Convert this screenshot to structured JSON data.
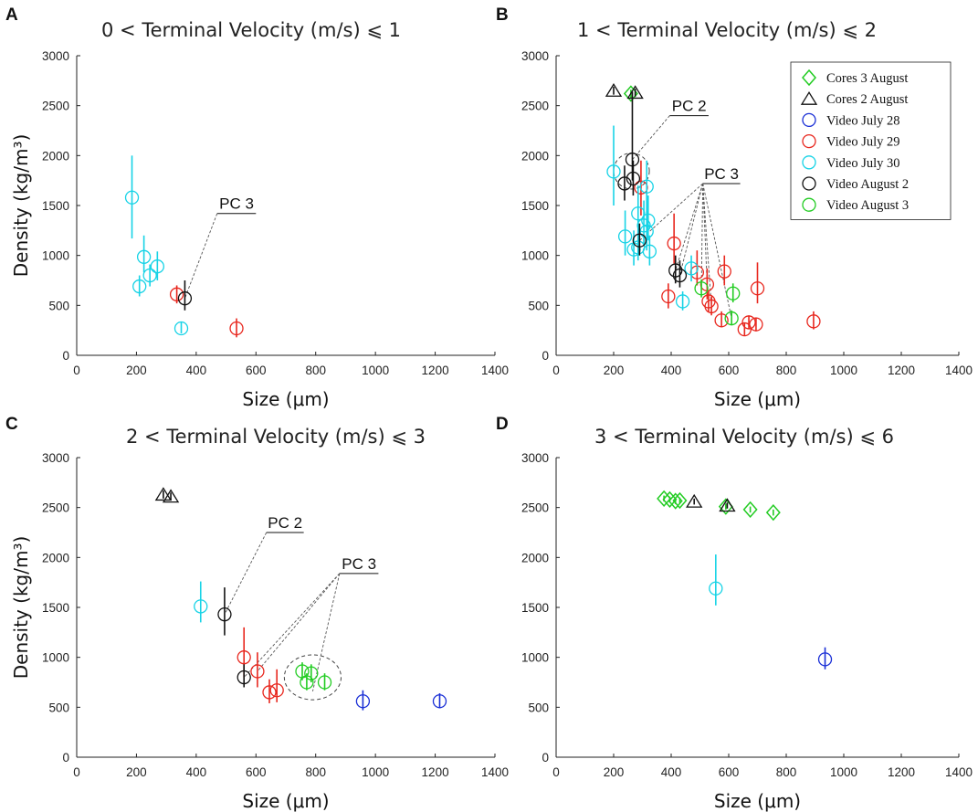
{
  "figure": {
    "panel_letters": [
      "A",
      "B",
      "C",
      "D"
    ]
  },
  "legend": {
    "entries": [
      {
        "label": "Cores 3 August",
        "marker": "diamond",
        "color": "#22cc22"
      },
      {
        "label": "Cores 2 August",
        "marker": "triangle",
        "color": "#111111"
      },
      {
        "label": "Video July 28",
        "marker": "circle",
        "color": "#1a2fd6"
      },
      {
        "label": "Video July 29",
        "marker": "circle",
        "color": "#e8271e"
      },
      {
        "label": "Video July 30",
        "marker": "circle",
        "color": "#17d3e6"
      },
      {
        "label": "Video August 2",
        "marker": "circle",
        "color": "#111111"
      },
      {
        "label": "Video August 3",
        "marker": "circle",
        "color": "#22cc22"
      }
    ]
  },
  "chart_data": [
    {
      "panel": "A",
      "type": "scatter",
      "title": "0 < Terminal Velocity (m/s) ⩽ 1",
      "xlabel": "Size (μm)",
      "ylabel": "Density (kg/m³)",
      "xlim": [
        0,
        1400
      ],
      "ylim": [
        0,
        3000
      ],
      "xticks": [
        0,
        200,
        400,
        600,
        800,
        1000,
        1200,
        1400
      ],
      "yticks": [
        0,
        500,
        1000,
        1500,
        2000,
        2500,
        3000
      ],
      "series": [
        {
          "name": "Video July 29",
          "points": [
            {
              "x": 335,
              "y": 610,
              "lo": 520,
              "hi": 700
            },
            {
              "x": 535,
              "y": 270,
              "lo": 180,
              "hi": 370
            }
          ]
        },
        {
          "name": "Video July 30",
          "points": [
            {
              "x": 185,
              "y": 1580,
              "lo": 1170,
              "hi": 2000
            },
            {
              "x": 225,
              "y": 985,
              "lo": 830,
              "hi": 1200
            },
            {
              "x": 270,
              "y": 890,
              "lo": 750,
              "hi": 1040
            },
            {
              "x": 210,
              "y": 690,
              "lo": 590,
              "hi": 800
            },
            {
              "x": 245,
              "y": 800,
              "lo": 690,
              "hi": 910
            },
            {
              "x": 350,
              "y": 270,
              "lo": 220,
              "hi": 330
            }
          ]
        },
        {
          "name": "Video August 2",
          "points": [
            {
              "x": 362,
              "y": 570,
              "lo": 450,
              "hi": 750
            }
          ]
        }
      ],
      "annotations": [
        {
          "text": "PC 3",
          "x": 470,
          "y": 1420,
          "bar_x2": 600,
          "targets": [
            [
              362,
              570
            ]
          ]
        }
      ],
      "ellipses": []
    },
    {
      "panel": "B",
      "type": "scatter",
      "title": "1 < Terminal Velocity (m/s) ⩽ 2",
      "xlabel": "Size (μm)",
      "ylabel": "",
      "xlim": [
        0,
        1400
      ],
      "ylim": [
        0,
        3000
      ],
      "xticks": [
        0,
        200,
        400,
        600,
        800,
        1000,
        1200,
        1400
      ],
      "yticks": [
        0,
        500,
        1000,
        1500,
        2000,
        2500,
        3000
      ],
      "series": [
        {
          "name": "Cores 3 August",
          "points": [
            {
              "x": 260,
              "y": 2620,
              "lo": 2580,
              "hi": 2660
            }
          ]
        },
        {
          "name": "Cores 2 August",
          "points": [
            {
              "x": 200,
              "y": 2650,
              "lo": 2610,
              "hi": 2690
            },
            {
              "x": 275,
              "y": 2630,
              "lo": 2590,
              "hi": 2670
            }
          ]
        },
        {
          "name": "Video July 29",
          "points": [
            {
              "x": 295,
              "y": 1680,
              "lo": 1400,
              "hi": 1950
            },
            {
              "x": 410,
              "y": 1120,
              "lo": 920,
              "hi": 1420
            },
            {
              "x": 390,
              "y": 590,
              "lo": 470,
              "hi": 720
            },
            {
              "x": 490,
              "y": 830,
              "lo": 700,
              "hi": 1050
            },
            {
              "x": 525,
              "y": 710,
              "lo": 560,
              "hi": 870
            },
            {
              "x": 530,
              "y": 540,
              "lo": 430,
              "hi": 650
            },
            {
              "x": 540,
              "y": 490,
              "lo": 400,
              "hi": 590
            },
            {
              "x": 575,
              "y": 350,
              "lo": 280,
              "hi": 440
            },
            {
              "x": 585,
              "y": 840,
              "lo": 700,
              "hi": 1000
            },
            {
              "x": 655,
              "y": 260,
              "lo": 200,
              "hi": 330
            },
            {
              "x": 670,
              "y": 330,
              "lo": 260,
              "hi": 400
            },
            {
              "x": 695,
              "y": 310,
              "lo": 240,
              "hi": 380
            },
            {
              "x": 700,
              "y": 670,
              "lo": 520,
              "hi": 930
            },
            {
              "x": 895,
              "y": 340,
              "lo": 260,
              "hi": 440
            }
          ]
        },
        {
          "name": "Video July 30",
          "points": [
            {
              "x": 200,
              "y": 1840,
              "lo": 1500,
              "hi": 2300
            },
            {
              "x": 240,
              "y": 1190,
              "lo": 1000,
              "hi": 1450
            },
            {
              "x": 270,
              "y": 1060,
              "lo": 900,
              "hi": 1250
            },
            {
              "x": 285,
              "y": 1420,
              "lo": 1200,
              "hi": 1700
            },
            {
              "x": 305,
              "y": 1300,
              "lo": 1100,
              "hi": 1550
            },
            {
              "x": 315,
              "y": 1690,
              "lo": 1450,
              "hi": 1950
            },
            {
              "x": 320,
              "y": 1350,
              "lo": 1150,
              "hi": 1600
            },
            {
              "x": 315,
              "y": 1240,
              "lo": 1050,
              "hi": 1450
            },
            {
              "x": 325,
              "y": 1040,
              "lo": 900,
              "hi": 1200
            },
            {
              "x": 285,
              "y": 1080,
              "lo": 950,
              "hi": 1250
            },
            {
              "x": 440,
              "y": 540,
              "lo": 450,
              "hi": 640
            },
            {
              "x": 470,
              "y": 870,
              "lo": 740,
              "hi": 1000
            }
          ]
        },
        {
          "name": "Video August 2",
          "points": [
            {
              "x": 265,
              "y": 1960,
              "lo": 1750,
              "hi": 2640
            },
            {
              "x": 268,
              "y": 1770,
              "lo": 1600,
              "hi": 1950
            },
            {
              "x": 238,
              "y": 1720,
              "lo": 1550,
              "hi": 1900
            },
            {
              "x": 290,
              "y": 1150,
              "lo": 1000,
              "hi": 1320
            },
            {
              "x": 415,
              "y": 850,
              "lo": 720,
              "hi": 1000
            },
            {
              "x": 430,
              "y": 800,
              "lo": 680,
              "hi": 950
            }
          ]
        },
        {
          "name": "Video August 3",
          "points": [
            {
              "x": 505,
              "y": 670,
              "lo": 580,
              "hi": 760
            },
            {
              "x": 610,
              "y": 370,
              "lo": 300,
              "hi": 450
            },
            {
              "x": 615,
              "y": 620,
              "lo": 530,
              "hi": 720
            }
          ]
        }
      ],
      "annotations": [
        {
          "text": "PC 2",
          "x": 395,
          "y": 2400,
          "bar_x2": 530,
          "targets": [
            [
              265,
              1960
            ]
          ]
        },
        {
          "text": "PC 3",
          "x": 510,
          "y": 1720,
          "bar_x2": 640,
          "targets": [
            [
              290,
              1150
            ],
            [
              415,
              850
            ],
            [
              430,
              800
            ],
            [
              505,
              670
            ],
            [
              525,
              710
            ],
            [
              540,
              490
            ],
            [
              610,
              370
            ]
          ]
        }
      ],
      "ellipses": [
        {
          "cx": 262,
          "cy": 1845,
          "rx": 62,
          "ry": 180
        }
      ]
    },
    {
      "panel": "C",
      "type": "scatter",
      "title": "2 < Terminal Velocity (m/s) ⩽ 3",
      "xlabel": "Size (μm)",
      "ylabel": "Density (kg/m³)",
      "xlim": [
        0,
        1400
      ],
      "ylim": [
        0,
        3000
      ],
      "xticks": [
        0,
        200,
        400,
        600,
        800,
        1000,
        1200,
        1400
      ],
      "yticks": [
        0,
        500,
        1000,
        1500,
        2000,
        2500,
        3000
      ],
      "series": [
        {
          "name": "Cores 2 August",
          "points": [
            {
              "x": 290,
              "y": 2630,
              "lo": 2590,
              "hi": 2670
            },
            {
              "x": 315,
              "y": 2610,
              "lo": 2570,
              "hi": 2650
            }
          ]
        },
        {
          "name": "Video July 28",
          "points": [
            {
              "x": 958,
              "y": 560,
              "lo": 470,
              "hi": 670
            },
            {
              "x": 1215,
              "y": 560,
              "lo": 490,
              "hi": 640
            }
          ]
        },
        {
          "name": "Video July 29",
          "points": [
            {
              "x": 560,
              "y": 1000,
              "lo": 800,
              "hi": 1300
            },
            {
              "x": 605,
              "y": 860,
              "lo": 700,
              "hi": 1050
            },
            {
              "x": 645,
              "y": 650,
              "lo": 540,
              "hi": 780
            },
            {
              "x": 670,
              "y": 670,
              "lo": 550,
              "hi": 880
            }
          ]
        },
        {
          "name": "Video July 30",
          "points": [
            {
              "x": 415,
              "y": 1510,
              "lo": 1350,
              "hi": 1760
            }
          ]
        },
        {
          "name": "Video August 2",
          "points": [
            {
              "x": 495,
              "y": 1430,
              "lo": 1220,
              "hi": 1700
            },
            {
              "x": 560,
              "y": 800,
              "lo": 700,
              "hi": 930
            }
          ]
        },
        {
          "name": "Video August 3",
          "points": [
            {
              "x": 755,
              "y": 860,
              "lo": 770,
              "hi": 950
            },
            {
              "x": 785,
              "y": 840,
              "lo": 750,
              "hi": 930
            },
            {
              "x": 770,
              "y": 750,
              "lo": 670,
              "hi": 840
            },
            {
              "x": 830,
              "y": 750,
              "lo": 670,
              "hi": 840
            }
          ]
        }
      ],
      "annotations": [
        {
          "text": "PC 2",
          "x": 635,
          "y": 2250,
          "bar_x2": 760,
          "targets": [
            [
              495,
              1430
            ]
          ]
        },
        {
          "text": "PC 3",
          "x": 880,
          "y": 1840,
          "bar_x2": 1010,
          "targets": [
            [
              560,
              800
            ],
            [
              605,
              860
            ],
            [
              790,
              660
            ]
          ]
        }
      ],
      "ellipses": [
        {
          "cx": 790,
          "cy": 800,
          "rx": 95,
          "ry": 225
        }
      ]
    },
    {
      "panel": "D",
      "type": "scatter",
      "title": "3 < Terminal Velocity (m/s) ⩽ 6",
      "xlabel": "Size (μm)",
      "ylabel": "",
      "xlim": [
        0,
        1400
      ],
      "ylim": [
        0,
        3000
      ],
      "xticks": [
        0,
        200,
        400,
        600,
        800,
        1000,
        1200,
        1400
      ],
      "yticks": [
        0,
        500,
        1000,
        1500,
        2000,
        2500,
        3000
      ],
      "series": [
        {
          "name": "Cores 3 August",
          "points": [
            {
              "x": 375,
              "y": 2590,
              "lo": 2560,
              "hi": 2620
            },
            {
              "x": 395,
              "y": 2580,
              "lo": 2550,
              "hi": 2610
            },
            {
              "x": 415,
              "y": 2565,
              "lo": 2535,
              "hi": 2595
            },
            {
              "x": 430,
              "y": 2570,
              "lo": 2540,
              "hi": 2600
            },
            {
              "x": 590,
              "y": 2510,
              "lo": 2480,
              "hi": 2540
            },
            {
              "x": 675,
              "y": 2480,
              "lo": 2450,
              "hi": 2510
            },
            {
              "x": 755,
              "y": 2450,
              "lo": 2420,
              "hi": 2480
            }
          ]
        },
        {
          "name": "Cores 2 August",
          "points": [
            {
              "x": 480,
              "y": 2560,
              "lo": 2530,
              "hi": 2590
            },
            {
              "x": 595,
              "y": 2520,
              "lo": 2490,
              "hi": 2550
            }
          ]
        },
        {
          "name": "Video July 28",
          "points": [
            {
              "x": 935,
              "y": 980,
              "lo": 880,
              "hi": 1100
            }
          ]
        },
        {
          "name": "Video July 30",
          "points": [
            {
              "x": 555,
              "y": 1690,
              "lo": 1520,
              "hi": 2030
            }
          ]
        }
      ],
      "annotations": [],
      "ellipses": []
    }
  ]
}
